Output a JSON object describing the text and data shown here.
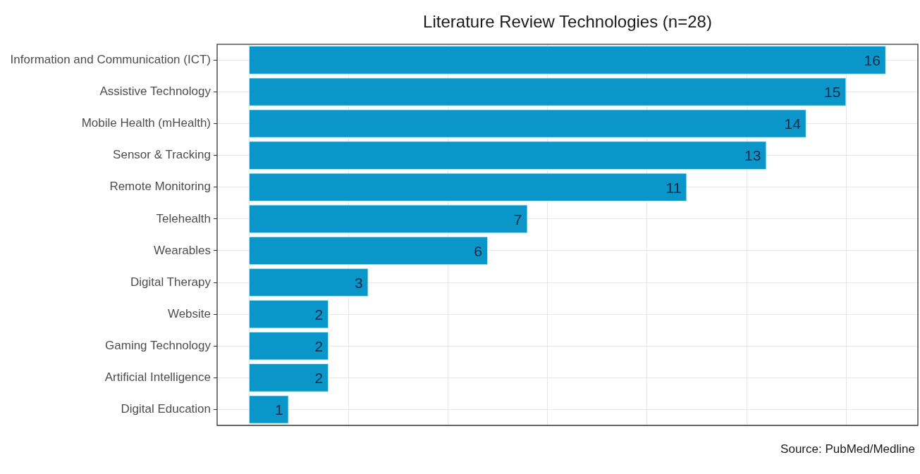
{
  "chart_data": {
    "type": "bar",
    "orientation": "horizontal",
    "title": "Literature Review Technologies (n=28)",
    "categories": [
      "Information and Communication (ICT)",
      "Assistive Technology",
      "Mobile Health (mHealth)",
      "Sensor & Tracking",
      "Remote Monitoring",
      "Telehealth",
      "Wearables",
      "Digital Therapy",
      "Website",
      "Gaming Technology",
      "Artificial Intelligence",
      "Digital Education"
    ],
    "values": [
      16,
      15,
      14,
      13,
      11,
      7,
      6,
      3,
      2,
      2,
      2,
      1
    ],
    "color": "#0a96c9",
    "xlim": [
      -0.8,
      16.8
    ],
    "xticks": [
      {
        "value": 0,
        "label": null
      },
      {
        "value": 2.5,
        "label": null
      },
      {
        "value": 5,
        "label": null
      },
      {
        "value": 7.5,
        "label": null
      },
      {
        "value": 10,
        "label": null
      },
      {
        "value": 12.5,
        "label": null
      },
      {
        "value": 15,
        "label": null
      }
    ],
    "tick_labels": "y",
    "grid": true,
    "data_labels": true,
    "annotations": [
      "Source: PubMed/Medline"
    ]
  }
}
